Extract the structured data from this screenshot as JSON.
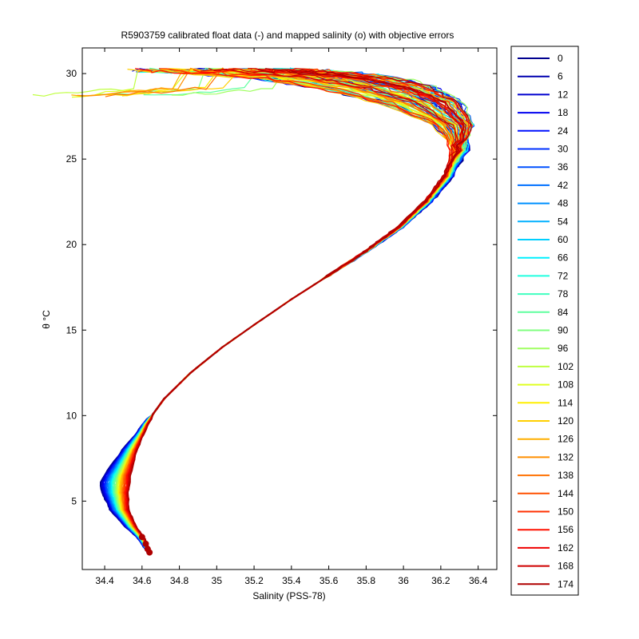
{
  "chart_data": {
    "type": "line",
    "title": "R5903759 calibrated float data (-) and mapped salinity (o) with objective errors",
    "xlabel": "Salinity (PSS-78)",
    "ylabel": "θ °C",
    "xlim": [
      34.28,
      36.5
    ],
    "ylim": [
      1.0,
      31.5
    ],
    "xticks": [
      "34.4",
      "34.6",
      "34.8",
      "35",
      "35.2",
      "35.4",
      "35.6",
      "35.8",
      "36",
      "36.2",
      "36.4"
    ],
    "xtick_values": [
      34.4,
      34.6,
      34.8,
      35.0,
      35.2,
      35.4,
      35.6,
      35.8,
      36.0,
      36.2,
      36.4
    ],
    "yticks": [
      "5",
      "10",
      "15",
      "20",
      "25",
      "30"
    ],
    "ytick_values": [
      5,
      10,
      15,
      20,
      25,
      30
    ],
    "grid": false,
    "legend_position": "outside-right",
    "legend": [
      "0",
      "6",
      "12",
      "18",
      "24",
      "30",
      "36",
      "42",
      "48",
      "54",
      "60",
      "66",
      "72",
      "78",
      "84",
      "90",
      "96",
      "102",
      "108",
      "114",
      "120",
      "126",
      "132",
      "138",
      "144",
      "150",
      "156",
      "162",
      "168",
      "174"
    ],
    "legend_colors": [
      "#00008f",
      "#0000af",
      "#0000cf",
      "#0000ef",
      "#0010ff",
      "#0030ff",
      "#0050ff",
      "#0070ff",
      "#0090ff",
      "#00b0ff",
      "#00d0ff",
      "#00f0ff",
      "#20ffdf",
      "#40ffbf",
      "#60ff9f",
      "#80ff80",
      "#9fff60",
      "#bfff40",
      "#dfff20",
      "#ffef00",
      "#ffcf00",
      "#ffaf00",
      "#ff8f00",
      "#ff7000",
      "#ff5000",
      "#ff3000",
      "#ff1000",
      "#ef0000",
      "#cf0000",
      "#af0000"
    ],
    "mean_profile": [
      [
        34.64,
        2.0
      ],
      [
        34.6,
        2.8
      ],
      [
        34.55,
        3.5
      ],
      [
        34.5,
        4.5
      ],
      [
        34.49,
        5.5
      ],
      [
        34.5,
        6.5
      ],
      [
        34.55,
        8.0
      ],
      [
        34.62,
        9.5
      ],
      [
        34.72,
        11.0
      ],
      [
        34.86,
        12.5
      ],
      [
        35.03,
        14.0
      ],
      [
        35.2,
        15.3
      ],
      [
        35.4,
        16.8
      ],
      [
        35.6,
        18.2
      ],
      [
        35.8,
        19.6
      ],
      [
        35.98,
        21.0
      ],
      [
        36.13,
        22.5
      ],
      [
        36.24,
        24.0
      ],
      [
        36.3,
        25.5
      ],
      [
        36.27,
        27.0
      ],
      [
        36.1,
        28.3
      ],
      [
        35.85,
        29.2
      ],
      [
        35.55,
        29.8
      ],
      [
        35.25,
        30.1
      ],
      [
        35.0,
        30.2
      ]
    ]
  }
}
